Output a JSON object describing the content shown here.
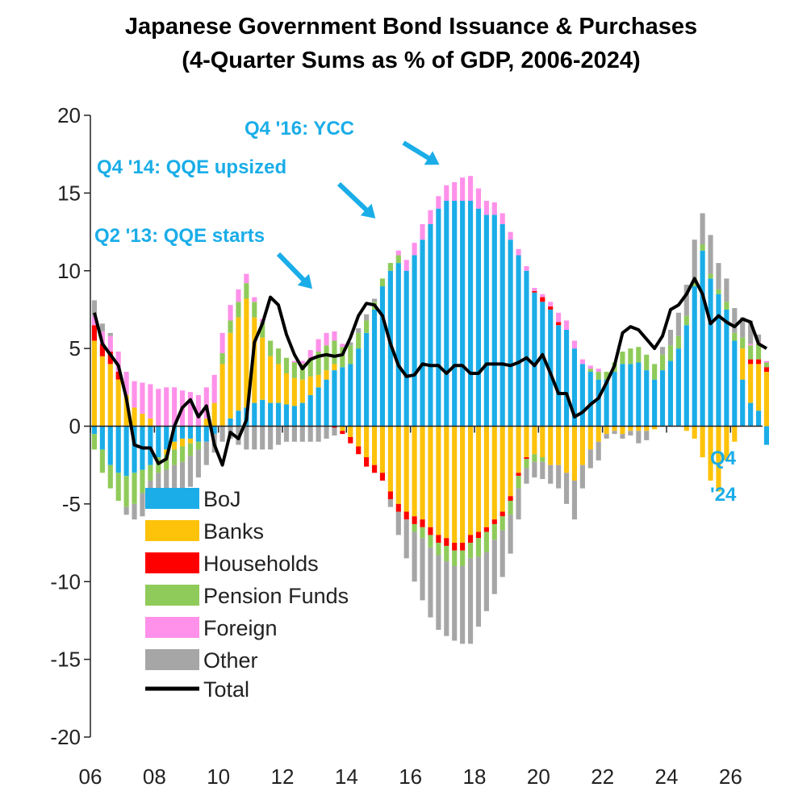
{
  "title_line1": "Japanese Government Bond Issuance & Purchases",
  "title_line2": "(4-Quarter Sums as % of GDP, 2006-2024)",
  "chart_data": {
    "type": "bar",
    "stacked": true,
    "x_start": 2006.0,
    "x_step": 0.25,
    "ylim": [
      -20,
      20
    ],
    "yticks": [
      "20",
      "15",
      "10",
      "5",
      "0",
      "-5",
      "-10",
      "-15",
      "-20"
    ],
    "ytick_values": [
      20,
      15,
      10,
      5,
      0,
      -5,
      -10,
      -15,
      -20
    ],
    "xticks": [
      "06",
      "08",
      "10",
      "12",
      "14",
      "16",
      "18",
      "20",
      "22",
      "24",
      "26"
    ],
    "xtick_values": [
      2006,
      2008,
      2010,
      2012,
      2014,
      2016,
      2018,
      2020,
      2022,
      2024,
      2026
    ],
    "grid": false,
    "legend_position": "bottom-left",
    "series": [
      {
        "name": "BoJ",
        "color": "#1AADE8",
        "values": [
          -0.5,
          -1.5,
          -2.5,
          -3,
          -3.2,
          -3,
          -2.8,
          -2.5,
          -2,
          -1.5,
          -1,
          -0.8,
          -0.8,
          -1,
          -1,
          -0.5,
          0,
          0.5,
          1,
          1.2,
          1.5,
          1.7,
          1.5,
          1.5,
          1.4,
          1.3,
          1.5,
          2,
          2.5,
          3,
          3.6,
          3.8,
          4,
          5,
          6,
          7.5,
          9,
          10,
          10.5,
          10,
          11,
          12,
          13,
          14,
          14.5,
          14.5,
          14.5,
          14.5,
          14,
          13.6,
          13.6,
          13,
          12,
          11,
          10,
          8.6,
          8,
          7.5,
          6.5,
          6.2,
          5,
          4,
          3.5,
          3,
          3,
          3.5,
          4,
          4,
          4.1,
          3.6,
          3,
          3.6,
          4.2,
          5,
          6.5,
          9,
          11.3,
          9.5,
          8.5,
          7.5,
          5.5,
          3,
          1.5,
          1,
          -1.2
        ]
      },
      {
        "name": "Banks",
        "color": "#FDC20A",
        "values": [
          5.5,
          4.5,
          4,
          3,
          2,
          1.2,
          0.8,
          0.5,
          0,
          -0.3,
          -0.5,
          -0.5,
          -0.3,
          0,
          0.5,
          1.5,
          4,
          5.5,
          6,
          7,
          5.5,
          4,
          3,
          2.5,
          2,
          1.8,
          1.5,
          1.2,
          0.8,
          0.6,
          0.4,
          -0.3,
          -0.7,
          -1.3,
          -2,
          -2.5,
          -3,
          -4.2,
          -5,
          -5.5,
          -5.8,
          -6,
          -6.5,
          -7,
          -7.2,
          -7.5,
          -7.5,
          -7,
          -6.8,
          -6.5,
          -6,
          -5.5,
          -4.5,
          -3,
          -2,
          -1.8,
          -2,
          -2.5,
          -2.5,
          -3,
          -3.5,
          -2.5,
          -1.5,
          -1,
          -0.5,
          -0.3,
          -0.5,
          -0.3,
          -0.3,
          -0.3,
          -0.2,
          0,
          0,
          0,
          -0.3,
          -0.8,
          -2,
          -3.5,
          -4.2,
          -2.2,
          -1,
          2,
          2.5,
          3,
          3.5
        ]
      },
      {
        "name": "Households",
        "color": "#FF0000",
        "values": [
          1,
          0.8,
          0.8,
          0.5,
          0,
          0,
          0,
          0,
          0,
          0,
          0,
          0,
          0,
          0,
          0,
          0,
          0,
          0,
          0,
          0,
          0,
          0,
          0,
          0,
          0,
          0,
          0,
          0,
          0,
          0,
          -0.1,
          -0.2,
          -0.4,
          -0.5,
          -0.6,
          -0.5,
          -0.5,
          -0.5,
          -0.5,
          -0.5,
          -0.5,
          -0.5,
          -0.5,
          -0.5,
          -0.5,
          -0.5,
          -0.5,
          -0.5,
          -0.4,
          -0.3,
          -0.3,
          -0.3,
          -0.3,
          -0.2,
          -0.1,
          0.1,
          0.3,
          0.2,
          0.2,
          0,
          0,
          0,
          0,
          0,
          0,
          0,
          0,
          0,
          0,
          0,
          0,
          0,
          0,
          0,
          0,
          0,
          0,
          0,
          0,
          0,
          0,
          0,
          0.3,
          0.3,
          0.3
        ]
      },
      {
        "name": "Pension Funds",
        "color": "#8FCB5A",
        "values": [
          -1,
          -1.5,
          -1.5,
          -1.8,
          -2,
          -2,
          -1.5,
          -1,
          -1,
          -1,
          -1,
          -1,
          -0.8,
          -0.5,
          0,
          0,
          0.7,
          0.8,
          1,
          1,
          1,
          1,
          1,
          1,
          1,
          1,
          1,
          1.2,
          1.5,
          1.6,
          1.5,
          1.3,
          1.2,
          1,
          0.8,
          0.5,
          0.5,
          0.5,
          0.5,
          0,
          -0.5,
          -0.7,
          -0.8,
          -0.8,
          -1,
          -1,
          -1,
          -1,
          -1.2,
          -1.3,
          -1,
          -0.9,
          -0.9,
          -0.8,
          -0.6,
          -0.5,
          -0.3,
          0,
          0,
          0,
          0,
          0,
          0.2,
          0.5,
          0.5,
          0.6,
          0.8,
          1,
          1,
          1,
          1,
          1,
          1,
          0.8,
          0.6,
          0.5,
          0.4,
          0.3,
          0.3,
          0.5,
          0.5,
          0.7,
          0.9,
          1,
          0.3
        ]
      },
      {
        "name": "Foreign",
        "color": "#FF91EA",
        "values": [
          0.6,
          0.8,
          1,
          1.3,
          1.5,
          1.7,
          2,
          2.2,
          2.4,
          2.5,
          2.5,
          2.3,
          2.2,
          2,
          2,
          1.8,
          1.3,
          1,
          0.8,
          0.6,
          0.3,
          0.2,
          0,
          0,
          0,
          0.1,
          0.2,
          0.5,
          0.8,
          0.8,
          0.6,
          0.2,
          0,
          0,
          0,
          0,
          0,
          0,
          0.3,
          0.7,
          0.8,
          1,
          0.9,
          0.8,
          1,
          1.2,
          1.5,
          1.6,
          1.3,
          0.9,
          0.8,
          0.7,
          0.5,
          0.4,
          0.3,
          0.2,
          0.2,
          0.3,
          0.6,
          0.6,
          0.5,
          0.3,
          0.2,
          0.2,
          0,
          0,
          0,
          0,
          0,
          0,
          0,
          0,
          0,
          0,
          0,
          0,
          0,
          0,
          0,
          0,
          0,
          0,
          0.1,
          0.1,
          0.1
        ]
      },
      {
        "name": "Other",
        "color": "#A6A6A6",
        "values": [
          1,
          0.5,
          0.2,
          0,
          -0.5,
          -1,
          -1.5,
          -1.8,
          -2,
          -2.2,
          -2.4,
          -2.2,
          -2,
          -1.8,
          -1.5,
          -1.2,
          -1,
          -0.8,
          -1.2,
          -1.5,
          -1.5,
          -1.5,
          -1.5,
          -1.2,
          -1,
          -1,
          -1,
          -1,
          -1,
          -0.8,
          -0.5,
          0,
          0.2,
          0.3,
          0.4,
          0.2,
          0,
          -0.5,
          -1.5,
          -2.5,
          -3.2,
          -4,
          -4.5,
          -4.8,
          -4.8,
          -4.8,
          -5,
          -5.5,
          -4.5,
          -3.8,
          -3.5,
          -3,
          -2.5,
          -2,
          -1,
          -1,
          -1.1,
          -1.2,
          -1.5,
          -2,
          -2.5,
          -1.5,
          -1.2,
          -1.2,
          -0.3,
          -0.2,
          -0.3,
          -0.3,
          -0.8,
          -0.6,
          0,
          0.5,
          1,
          1.5,
          2,
          2.5,
          2,
          2.5,
          1.7,
          1.5,
          1.6,
          1.3,
          1.5,
          0.5,
          0
        ]
      }
    ],
    "total": {
      "name": "Total",
      "color": "#000000",
      "values": [
        7.3,
        5.3,
        4.6,
        3.9,
        1.8,
        -1.2,
        -1.4,
        -1.4,
        -2.4,
        -2.1,
        0,
        1.2,
        1.7,
        0.6,
        1.3,
        -1.2,
        -2.5,
        -0.4,
        -0.8,
        0.4,
        5.4,
        6.6,
        8.3,
        7.8,
        5.9,
        4.6,
        3.7,
        4.3,
        4.5,
        4.6,
        4.5,
        4.6,
        5.7,
        7.1,
        7.9,
        7.8,
        7.1,
        5.3,
        3.9,
        3.2,
        3.3,
        4.0,
        3.9,
        3.9,
        3.4,
        3.9,
        3.9,
        3.4,
        3.4,
        4.0,
        4.0,
        4.0,
        3.9,
        4.1,
        4.4,
        3.9,
        4.6,
        3.4,
        2.1,
        2.1,
        0.6,
        0.9,
        1.4,
        1.8,
        2.8,
        3.9,
        6.0,
        6.4,
        6.2,
        5.6,
        5.0,
        5.8,
        7.5,
        7.8,
        8.5,
        9.5,
        8.5,
        6.6,
        7.1,
        6.7,
        6.4,
        6.9,
        6.7,
        5.3,
        5.0
      ]
    },
    "annotations": [
      {
        "text": "Q4 '16: YCC"
      },
      {
        "text": "Q4 '14: QQE upsized"
      },
      {
        "text": "Q2 '13: QQE starts"
      },
      {
        "text": "Q4"
      },
      {
        "text": "'24"
      }
    ]
  }
}
